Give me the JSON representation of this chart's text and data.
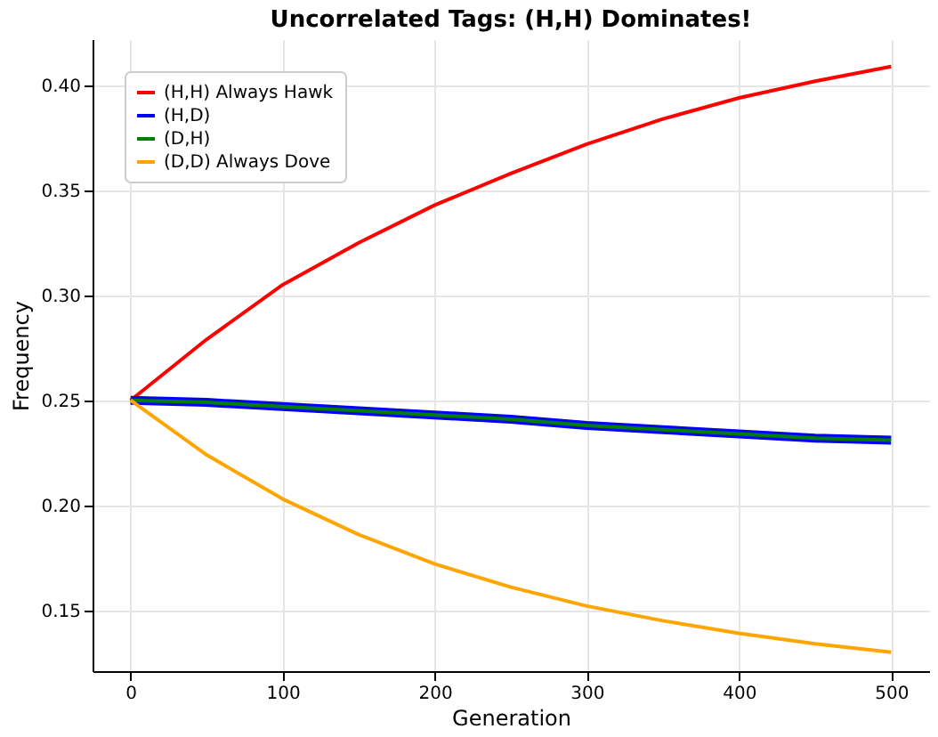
{
  "chart_data": {
    "type": "line",
    "title": "Uncorrelated Tags: (H,H) Dominates!",
    "xlabel": "Generation",
    "ylabel": "Frequency",
    "x": [
      0,
      50,
      100,
      150,
      200,
      250,
      300,
      350,
      400,
      450,
      500
    ],
    "series": [
      {
        "name": "(H,H) Always Hawk",
        "color": "#ff0000",
        "values": [
          0.25,
          0.279,
          0.305,
          0.325,
          0.343,
          0.358,
          0.372,
          0.384,
          0.394,
          0.402,
          0.409
        ]
      },
      {
        "name": "(H,D)",
        "color": "#0000ff",
        "values": [
          0.25,
          0.249,
          0.247,
          0.245,
          0.243,
          0.241,
          0.238,
          0.236,
          0.234,
          0.232,
          0.231
        ]
      },
      {
        "name": "(D,H)",
        "color": "#008000",
        "values": [
          0.25,
          0.249,
          0.247,
          0.245,
          0.243,
          0.241,
          0.238,
          0.236,
          0.234,
          0.232,
          0.231
        ]
      },
      {
        "name": "(D,D) Always Dove",
        "color": "#ffa500",
        "values": [
          0.25,
          0.224,
          0.203,
          0.186,
          0.172,
          0.161,
          0.152,
          0.145,
          0.139,
          0.134,
          0.13
        ]
      }
    ],
    "xlim": [
      -25,
      525
    ],
    "ylim": [
      0.121,
      0.422
    ],
    "xticks": [
      0,
      100,
      200,
      300,
      400,
      500
    ],
    "yticks": [
      0.15,
      {
        "value": 0.2,
        "label": "0.20"
      },
      0.25,
      {
        "value": 0.3,
        "label": "0.30"
      },
      0.35,
      {
        "value": 0.4,
        "label": "0.40"
      }
    ],
    "grid": true,
    "legend": "top left",
    "marker": "none",
    "line_style": "solid"
  }
}
